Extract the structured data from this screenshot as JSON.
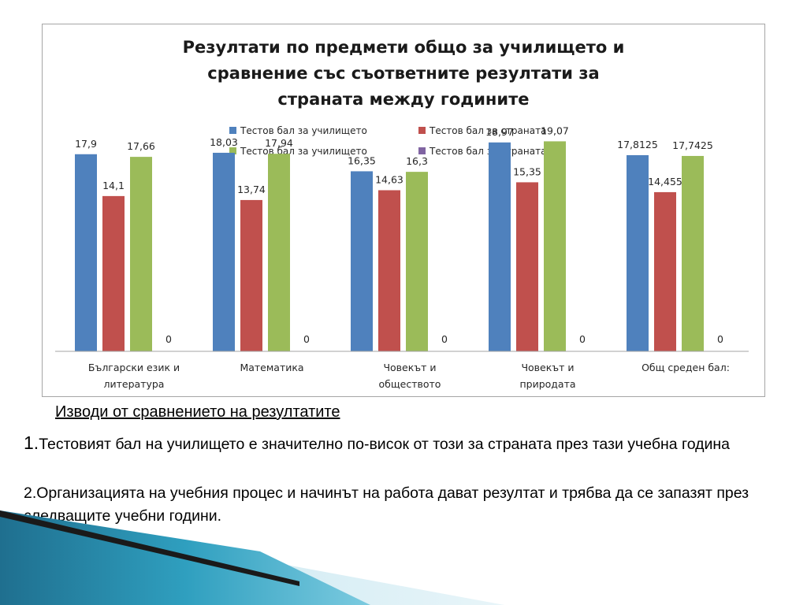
{
  "chart_data": {
    "type": "bar",
    "title_lines": [
      "Резултати по предмети общо за училището  и",
      "сравнение със съответните резултати за",
      "страната  между годините"
    ],
    "categories": [
      [
        "Български език и",
        "литература"
      ],
      [
        "Математика"
      ],
      [
        "Човекът и",
        "обществото"
      ],
      [
        "Човекът и",
        "природата"
      ],
      [
        "Общ среден бал:"
      ]
    ],
    "series": [
      {
        "name": "Тестов бал за училището",
        "color": "#4f81bd",
        "values": [
          17.9,
          18.03,
          16.35,
          18.97,
          17.8125
        ],
        "labels": [
          "17,9",
          "18,03",
          "16,35",
          "18,97",
          "17,8125"
        ]
      },
      {
        "name": "Тестов бал за страната",
        "color": "#c0504d",
        "values": [
          14.1,
          13.74,
          14.63,
          15.35,
          14.455
        ],
        "labels": [
          "14,1",
          "13,74",
          "14,63",
          "15,35",
          "14,455"
        ]
      },
      {
        "name": "Тестов бал за училището",
        "color": "#9bbb59",
        "values": [
          17.66,
          17.94,
          16.3,
          19.07,
          17.7425
        ],
        "labels": [
          "17,66",
          "17,94",
          "16,3",
          "19,07",
          "17,7425"
        ]
      },
      {
        "name": "Тестов бал за страната",
        "color": "#8064a2",
        "values": [
          0,
          0,
          0,
          0,
          0
        ],
        "labels": [
          "0",
          "0",
          "0",
          "0",
          "0"
        ]
      }
    ],
    "ylim": [
      0,
      20
    ],
    "grid": false,
    "legend": "top",
    "xlabel": "",
    "ylabel": ""
  },
  "conclusions": {
    "heading": "Изводи от сравнението на резултатите",
    "points": [
      {
        "num": "1.",
        "text": "Тестовият бал на училището е значително по-висок от този за страната през тази учебна година"
      },
      {
        "num": "2.",
        "text": "Организацията на учебния процес и начинът на работа дават резултат и трябва да се запазят през следващите учебни години."
      }
    ]
  }
}
